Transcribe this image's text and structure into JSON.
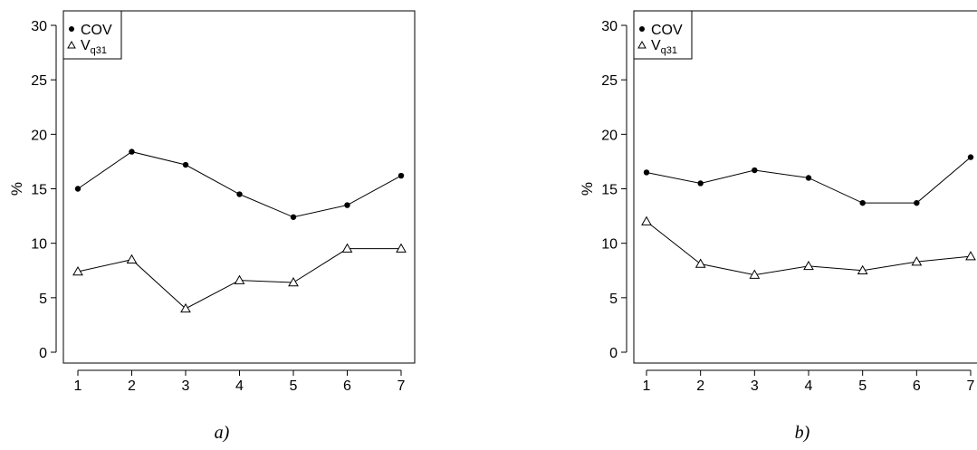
{
  "chart_data": [
    {
      "type": "line",
      "panel_label": "a)",
      "x": [
        1,
        2,
        3,
        4,
        5,
        6,
        7
      ],
      "ylabel": "%",
      "xlabel": "",
      "ylim": [
        0,
        30
      ],
      "yticks": [
        0,
        5,
        10,
        15,
        20,
        25,
        30
      ],
      "xticks": [
        1,
        2,
        3,
        4,
        5,
        6,
        7
      ],
      "legend_position": "top-left",
      "series": [
        {
          "name": "COV",
          "marker": "filled-circle",
          "values": [
            15.0,
            18.4,
            17.2,
            14.5,
            12.4,
            13.5,
            16.2
          ]
        },
        {
          "name": "V",
          "name_subscript": "q31",
          "marker": "open-triangle",
          "values": [
            7.4,
            8.5,
            4.0,
            6.6,
            6.4,
            9.5,
            9.5
          ]
        }
      ]
    },
    {
      "type": "line",
      "panel_label": "b)",
      "x": [
        1,
        2,
        3,
        4,
        5,
        6,
        7
      ],
      "ylabel": "%",
      "xlabel": "",
      "ylim": [
        0,
        30
      ],
      "yticks": [
        0,
        5,
        10,
        15,
        20,
        25,
        30
      ],
      "xticks": [
        1,
        2,
        3,
        4,
        5,
        6,
        7
      ],
      "legend_position": "top-left",
      "series": [
        {
          "name": "COV",
          "marker": "filled-circle",
          "values": [
            16.5,
            15.5,
            16.7,
            16.0,
            13.7,
            13.7,
            17.9
          ]
        },
        {
          "name": "V",
          "name_subscript": "q31",
          "marker": "open-triangle",
          "values": [
            12.0,
            8.1,
            7.1,
            7.9,
            7.5,
            8.3,
            8.8
          ]
        }
      ]
    }
  ]
}
